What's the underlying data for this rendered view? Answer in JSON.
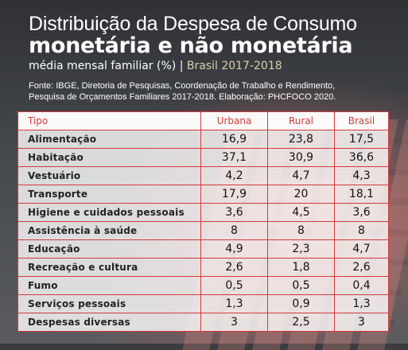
{
  "header": {
    "title_line1": "Distribuição da Despesa de Consumo",
    "title_line2": "monetária e não monetária",
    "subtitle": "média mensal familiar (%)",
    "subtitle_sep": "|",
    "subtitle_year": "Brasil 2017-2018",
    "source_line1": "Fonte: IBGE, Diretoria de Pesquisas, Coordenação de Trabalho e Rendimento,",
    "source_line2": "Pesquisa de Orçamentos Familiares 2017-2018. Elaboração: PHCFOCO 2020."
  },
  "colors": {
    "accent": "#d23a3a",
    "year_text": "#d7d2a8"
  },
  "table": {
    "columns": [
      "Tipo",
      "Urbana",
      "Rural",
      "Brasil"
    ],
    "rows": [
      {
        "tipo": "Alimentação",
        "urbana": "16,9",
        "rural": "23,8",
        "brasil": "17,5"
      },
      {
        "tipo": "Habitação",
        "urbana": "37,1",
        "rural": "30,9",
        "brasil": "36,6"
      },
      {
        "tipo": "Vestuário",
        "urbana": "4,2",
        "rural": "4,7",
        "brasil": "4,3"
      },
      {
        "tipo": "Transporte",
        "urbana": "17,9",
        "rural": "20",
        "brasil": "18,1"
      },
      {
        "tipo": "Higiene e cuidados pessoais",
        "urbana": "3,6",
        "rural": "4,5",
        "brasil": "3,6"
      },
      {
        "tipo": "Assistência à saúde",
        "urbana": "8",
        "rural": "8",
        "brasil": "8"
      },
      {
        "tipo": "Educação",
        "urbana": "4,9",
        "rural": "2,3",
        "brasil": "4,7"
      },
      {
        "tipo": "Recreação e cultura",
        "urbana": "2,6",
        "rural": "1,8",
        "brasil": "2,6"
      },
      {
        "tipo": "Fumo",
        "urbana": "0,5",
        "rural": "0,5",
        "brasil": "0,4"
      },
      {
        "tipo": "Serviços pessoais",
        "urbana": "1,3",
        "rural": "0,9",
        "brasil": "1,3"
      },
      {
        "tipo": "Despesas diversas",
        "urbana": "3",
        "rural": "2,5",
        "brasil": "3"
      }
    ]
  }
}
